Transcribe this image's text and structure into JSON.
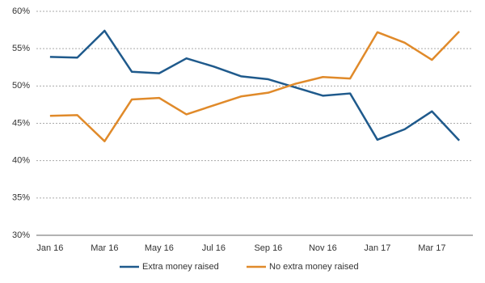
{
  "chart_data": {
    "type": "line",
    "categories": [
      "Jan 16",
      null,
      "Mar 16",
      null,
      "May 16",
      null,
      "Jul 16",
      null,
      "Sep 16",
      null,
      "Nov 16",
      null,
      "Jan 17",
      null,
      "Mar 17",
      null
    ],
    "series": [
      {
        "name": "Extra money raised",
        "color": "#1f5a8c",
        "values": [
          53.9,
          53.8,
          57.4,
          51.9,
          51.7,
          53.7,
          52.6,
          51.3,
          50.9,
          49.8,
          48.7,
          49.0,
          42.8,
          44.2,
          46.6,
          42.7
        ]
      },
      {
        "name": "No extra money raised",
        "color": "#e08a2a",
        "values": [
          46.0,
          46.1,
          42.6,
          48.2,
          48.4,
          46.2,
          47.4,
          48.6,
          49.1,
          50.3,
          51.2,
          51.0,
          57.2,
          55.8,
          53.5,
          57.3
        ]
      }
    ],
    "ylim": [
      30,
      60
    ],
    "yticks": [
      {
        "value": 30,
        "label": "30%"
      },
      {
        "value": 35,
        "label": "35%"
      },
      {
        "value": 40,
        "label": "40%"
      },
      {
        "value": 45,
        "label": "45%"
      },
      {
        "value": 50,
        "label": "50%"
      },
      {
        "value": 55,
        "label": "55%"
      },
      {
        "value": 60,
        "label": "60%"
      }
    ],
    "grid": true,
    "legend": "bottom"
  }
}
